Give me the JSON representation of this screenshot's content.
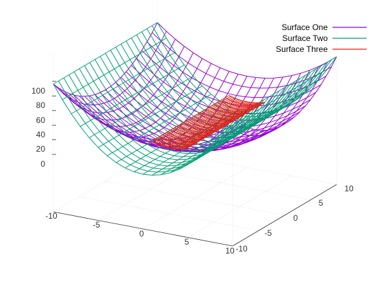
{
  "chart_data": {
    "type": "surface",
    "title": "",
    "xlabel": "",
    "ylabel": "",
    "zlabel": "",
    "xlim": [
      -10,
      10
    ],
    "ylim": [
      -10,
      10
    ],
    "zlim": [
      0,
      100
    ],
    "x_ticks": [
      "-10",
      "-5",
      "0",
      "5",
      "10"
    ],
    "y_ticks": [
      "-10",
      "-5",
      "0",
      "5",
      "10"
    ],
    "z_ticks": [
      "0",
      "20",
      "40",
      "60",
      "80",
      "100"
    ],
    "grid": true,
    "legend_position": "top-right",
    "series": [
      {
        "name": "Surface One",
        "color": "#9400d3",
        "expression": "z = (x^2 + y^2) / 2",
        "x_range": [
          -10,
          10
        ],
        "y_range": [
          -10,
          10
        ],
        "samples": 21
      },
      {
        "name": "Surface Two",
        "color": "#009e73",
        "expression": "z = x^2",
        "x_range": [
          -10,
          10
        ],
        "y_range": [
          -10,
          10
        ],
        "samples": 21
      },
      {
        "name": "Surface Three",
        "color": "#e02010",
        "expression": "z = x^2 + 15",
        "x_range": [
          -2,
          2
        ],
        "y_range": [
          -5,
          10
        ],
        "samples": 21
      }
    ]
  }
}
